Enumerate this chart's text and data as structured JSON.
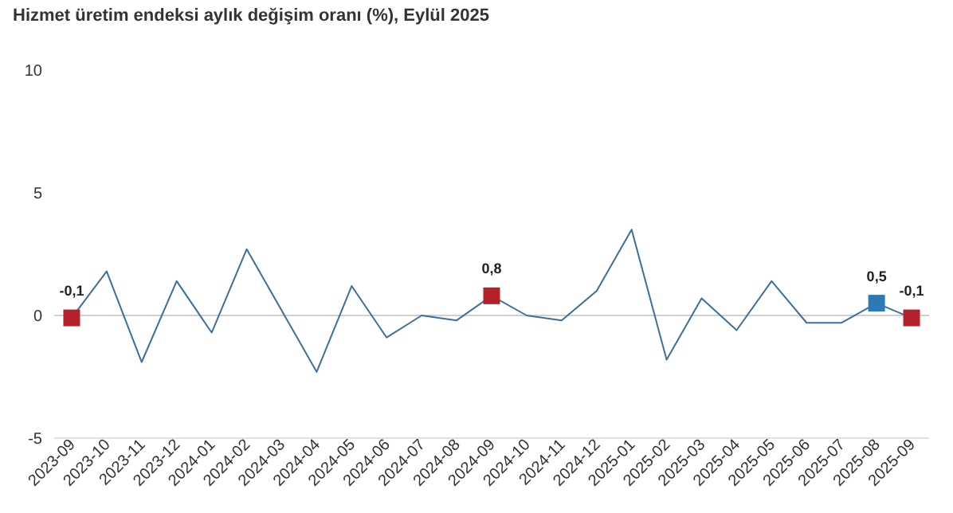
{
  "chart_data": {
    "type": "line",
    "title": "Hizmet üretim endeksi aylık değişim oranı (%), Eylül 2025",
    "categories": [
      "2023-09",
      "2023-10",
      "2023-11",
      "2023-12",
      "2024-01",
      "2024-02",
      "2024-03",
      "2024-04",
      "2024-05",
      "2024-06",
      "2024-07",
      "2024-08",
      "2024-09",
      "2024-10",
      "2024-11",
      "2024-12",
      "2025-01",
      "2025-02",
      "2025-03",
      "2025-04",
      "2025-05",
      "2025-06",
      "2025-07",
      "2025-08",
      "2025-09"
    ],
    "series": [
      {
        "color": "#3c6f9f",
        "values": [
          -0.1,
          1.8,
          -1.9,
          1.4,
          -0.7,
          2.7,
          0.2,
          -2.3,
          1.2,
          -0.9,
          0.0,
          -0.2,
          0.8,
          0.0,
          -0.2,
          1.0,
          3.5,
          -1.8,
          0.7,
          -0.6,
          1.4,
          -0.3,
          -0.3,
          0.5,
          -0.1
        ]
      },
      {
        "type": "scatter",
        "marker": "square",
        "values": [
          -0.1,
          null,
          null,
          null,
          null,
          null,
          null,
          null,
          null,
          null,
          null,
          null,
          0.8,
          null,
          null,
          null,
          null,
          null,
          null,
          null,
          null,
          null,
          null,
          0.5,
          -0.1
        ],
        "colors": [
          "#b5202a",
          null,
          null,
          null,
          null,
          null,
          null,
          null,
          null,
          null,
          null,
          null,
          "#b5202a",
          null,
          null,
          null,
          null,
          null,
          null,
          null,
          null,
          null,
          null,
          "#2e78b7",
          "#b5202a"
        ],
        "value_labels": [
          "-0,1",
          null,
          null,
          null,
          null,
          null,
          null,
          null,
          null,
          null,
          null,
          null,
          "0,8",
          null,
          null,
          null,
          null,
          null,
          null,
          null,
          null,
          null,
          null,
          "0,5",
          "-0,1"
        ]
      }
    ],
    "ylim": [
      -5,
      10
    ],
    "yticks": [
      -5,
      0,
      5,
      10
    ],
    "grid": false,
    "ref_lines": [
      {
        "axis": "y",
        "value": 0,
        "color": "#d0d0d0"
      }
    ]
  }
}
